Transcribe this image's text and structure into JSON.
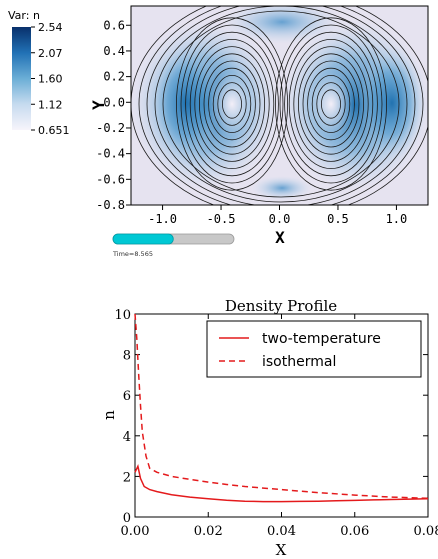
{
  "chart_data": [
    {
      "type": "heatmap",
      "legend": {
        "title": "Var: n",
        "ticks": [
          "2.54",
          "2.07",
          "1.60",
          "1.12",
          "0.651"
        ],
        "colormap": [
          "#08306b",
          "#2171b5",
          "#6baed6",
          "#c6dbef",
          "#f7f4fb"
        ]
      },
      "xlabel": "X",
      "ylabel": "Y",
      "x_ticks": [
        "-1.0",
        "-0.5",
        "0.0",
        "0.5",
        "1.0"
      ],
      "y_ticks": [
        "0.6",
        "0.4",
        "0.2",
        "0.0",
        "-0.2",
        "-0.4",
        "-0.6",
        "-0.8"
      ],
      "xlim": [
        -1.27,
        1.27
      ],
      "ylim": [
        -0.8,
        0.75
      ],
      "contours": "streamlines (black)",
      "time_label": "Time=8.565",
      "time_progress": 0.3,
      "colors": {
        "slider_fill": "#00c8d4",
        "slider_track": "#c8c8c8"
      }
    },
    {
      "type": "line",
      "title": "Density Profile",
      "xlabel": "X",
      "ylabel": "n",
      "xlim": [
        0,
        0.08
      ],
      "ylim": [
        0,
        10
      ],
      "x_ticks": [
        "0.00",
        "0.02",
        "0.04",
        "0.06",
        "0.08"
      ],
      "y_ticks": [
        "0",
        "2",
        "4",
        "6",
        "8",
        "10"
      ],
      "legend_position": "top-right",
      "series": [
        {
          "name": "two-temperature",
          "style": "solid",
          "color": "#e41a1c",
          "x": [
            0,
            0.0008,
            0.0015,
            0.0025,
            0.004,
            0.006,
            0.01,
            0.015,
            0.02,
            0.025,
            0.03,
            0.035,
            0.04,
            0.045,
            0.05,
            0.055,
            0.06,
            0.065,
            0.07,
            0.075,
            0.08
          ],
          "y": [
            2.2,
            2.5,
            1.9,
            1.5,
            1.35,
            1.25,
            1.1,
            0.98,
            0.9,
            0.83,
            0.78,
            0.76,
            0.76,
            0.77,
            0.78,
            0.8,
            0.82,
            0.84,
            0.86,
            0.88,
            0.9
          ]
        },
        {
          "name": "isothermal",
          "style": "dashed",
          "color": "#e41a1c",
          "x": [
            0,
            0.0005,
            0.001,
            0.0015,
            0.002,
            0.003,
            0.004,
            0.006,
            0.01,
            0.015,
            0.02,
            0.025,
            0.03,
            0.04,
            0.05,
            0.06,
            0.07,
            0.08
          ],
          "y": [
            10,
            8.8,
            7.0,
            5.5,
            4.2,
            3.0,
            2.4,
            2.2,
            2.0,
            1.85,
            1.72,
            1.6,
            1.5,
            1.35,
            1.2,
            1.08,
            0.98,
            0.92
          ]
        }
      ]
    }
  ]
}
